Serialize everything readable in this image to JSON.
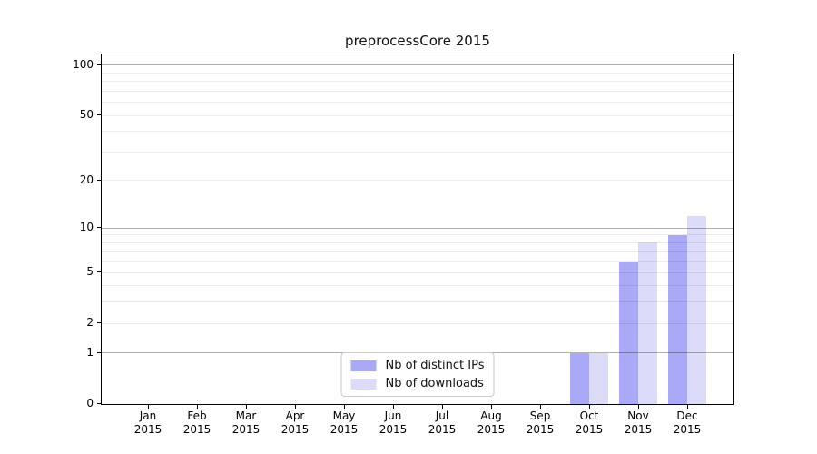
{
  "chart_data": {
    "type": "bar",
    "title": "preprocessCore 2015",
    "categories": [
      "Jan 2015",
      "Feb 2015",
      "Mar 2015",
      "Apr 2015",
      "May 2015",
      "Jun 2015",
      "Jul 2015",
      "Aug 2015",
      "Sep 2015",
      "Oct 2015",
      "Nov 2015",
      "Dec 2015"
    ],
    "series": [
      {
        "name": "Nb of distinct IPs",
        "color": "#a9a9f7",
        "values": [
          0,
          0,
          0,
          0,
          0,
          0,
          0,
          0,
          0,
          1,
          6,
          9
        ]
      },
      {
        "name": "Nb of downloads",
        "color": "#dcdcfa",
        "values": [
          0,
          0,
          0,
          0,
          0,
          0,
          0,
          0,
          0,
          1,
          8,
          12
        ]
      }
    ],
    "xlabel": "",
    "ylabel": "",
    "yscale": "log1p",
    "ylim": [
      0,
      115
    ],
    "yticks": [
      0,
      1,
      2,
      5,
      10,
      20,
      50,
      100
    ],
    "major_gridlines": [
      1,
      10,
      100
    ],
    "minor_gridlines": [
      2,
      3,
      4,
      5,
      6,
      7,
      8,
      9,
      20,
      30,
      40,
      50,
      60,
      70,
      80,
      90
    ],
    "grid": true,
    "legend": {
      "position": "lower-center",
      "entries": [
        "Nb of distinct IPs",
        "Nb of downloads"
      ]
    }
  },
  "colors": {
    "background": "#ffffff",
    "axis": "#000000",
    "major_grid": "#b3b3b3",
    "minor_grid": "#ececec",
    "bar_distinct_ips": "#a9a9f7",
    "bar_downloads": "#dcdcfa",
    "legend_border": "#cccccc"
  }
}
